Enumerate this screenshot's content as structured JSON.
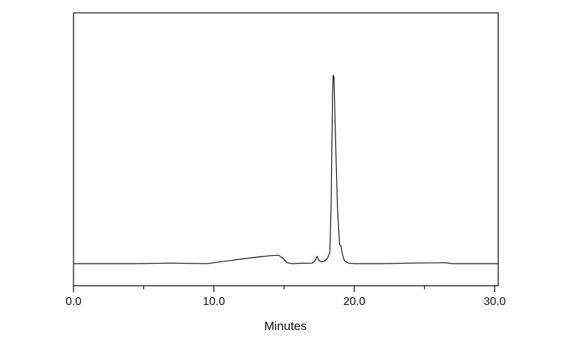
{
  "chart_data": {
    "type": "line",
    "title": "",
    "xlabel": "Minutes",
    "ylabel": "",
    "xlim": [
      0,
      30.25
    ],
    "ylim": [
      -11.7,
      133
    ],
    "x_ticks": [
      0,
      10,
      20,
      30
    ],
    "x_tick_labels": [
      "0.0",
      "10.0",
      "20.0",
      "30.0"
    ],
    "x_minor_ticks": [
      5,
      15,
      25
    ],
    "y_ticks_shown": false,
    "grid": false,
    "legend": "none",
    "line_color": "#111111",
    "series": [
      {
        "x": [
          0,
          4.5,
          6.8,
          9.5,
          10,
          11,
          12,
          13,
          14,
          14.6,
          14.9,
          15.2,
          15.6,
          16,
          17.0,
          17.2,
          17.35,
          17.5,
          17.7,
          17.9,
          18.1,
          18.25,
          18.35,
          18.45,
          18.5,
          18.55,
          18.65,
          18.8,
          18.95,
          19.05,
          19.15,
          19.3,
          19.6,
          20,
          22,
          24,
          26.5,
          27,
          30.25
        ],
        "y": [
          0,
          0,
          0.3,
          0,
          0.5,
          1.5,
          2.5,
          3.4,
          4.2,
          4.5,
          3,
          0.5,
          0,
          0.2,
          0.3,
          1.5,
          4,
          1.5,
          1,
          1.5,
          3,
          6,
          30,
          90,
          100,
          99,
          70,
          30,
          10,
          9.5,
          5,
          1.5,
          0.3,
          0,
          0,
          0.3,
          0.5,
          0,
          0
        ]
      }
    ]
  }
}
